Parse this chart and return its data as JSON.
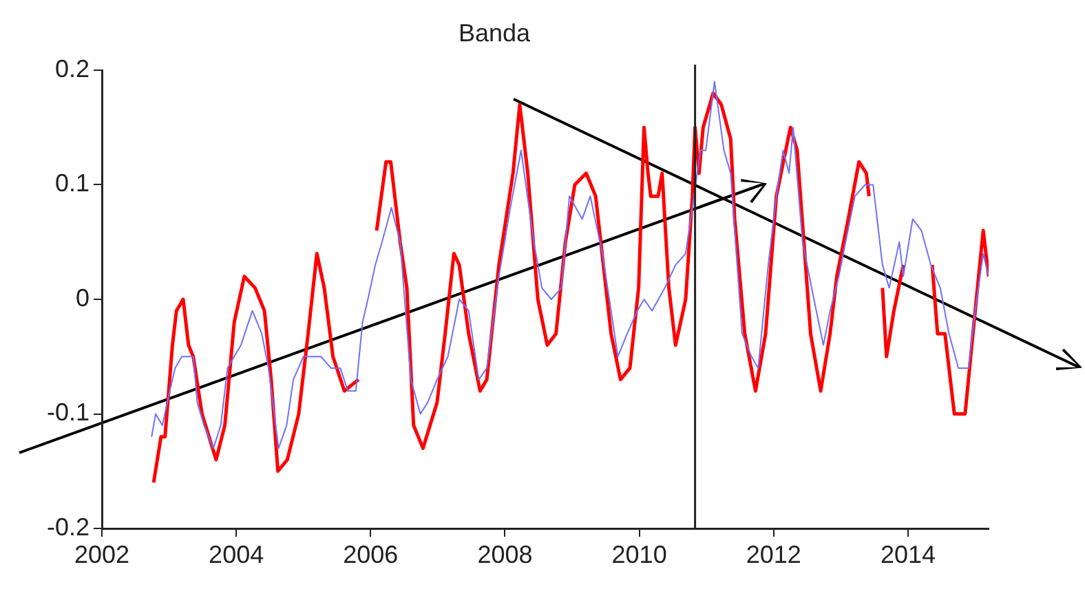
{
  "chart_data": {
    "type": "line",
    "title": "Banda",
    "xlim": [
      2002,
      2015.2
    ],
    "xticks": [
      2002,
      2004,
      2006,
      2008,
      2010,
      2012,
      2014
    ],
    "ylim": [
      -0.2,
      0.2
    ],
    "yticks": [
      -0.2,
      -0.1,
      0,
      0.1,
      0.2
    ],
    "grid": false,
    "legend": false,
    "marker": "none",
    "line_style": "solid",
    "ref_lines": [
      {
        "axis": "x",
        "value": 2010.83,
        "color": "#222222"
      }
    ],
    "series": [
      {
        "color": "#ff0000",
        "x": [
          2002.77,
          2002.88,
          2002.94,
          2003.05,
          2003.11,
          2003.21,
          2003.29,
          2003.36,
          2003.49,
          2003.7,
          2003.83,
          2003.97,
          2004.12,
          2004.28,
          2004.42,
          2004.52,
          2004.62,
          2004.76,
          2004.93,
          2005.07,
          2005.2,
          2005.31,
          2005.44,
          2005.61,
          2005.82,
          2005.95,
          2006.09,
          2006.23,
          2006.3,
          2006.44,
          2006.54,
          2006.64,
          2006.78,
          2006.99,
          2007.11,
          2007.24,
          2007.32,
          2007.46,
          2007.63,
          2007.73,
          2007.91,
          2008.12,
          2008.22,
          2008.34,
          2008.49,
          2008.63,
          2008.76,
          2008.9,
          2009.04,
          2009.21,
          2009.35,
          2009.58,
          2009.72,
          2009.86,
          2009.99,
          2010.07,
          2010.13,
          2010.17,
          2010.28,
          2010.34,
          2010.44,
          2010.54,
          2010.69,
          2010.79,
          2010.83,
          2010.89,
          2010.95,
          2011.1,
          2011.22,
          2011.36,
          2011.42,
          2011.57,
          2011.73,
          2011.88,
          2012.04,
          2012.25,
          2012.35,
          2012.45,
          2012.55,
          2012.7,
          2012.84,
          2012.94,
          2013.11,
          2013.27,
          2013.38,
          2013.42,
          2013.52,
          2013.62,
          2013.68,
          2013.79,
          2013.93,
          2014.15,
          2014.36,
          2014.44,
          2014.55,
          2014.69,
          2014.85,
          2015.0,
          2015.12,
          2015.2
        ],
        "values": [
          -0.16,
          -0.12,
          -0.12,
          -0.04,
          -0.01,
          0.0,
          -0.04,
          -0.05,
          -0.1,
          -0.14,
          -0.11,
          -0.02,
          0.02,
          0.01,
          -0.01,
          -0.07,
          -0.15,
          -0.14,
          -0.1,
          -0.03,
          0.04,
          0.01,
          -0.05,
          -0.08,
          -0.07,
          null,
          0.06,
          0.12,
          0.12,
          0.05,
          0.01,
          -0.11,
          -0.13,
          -0.09,
          -0.03,
          0.04,
          0.03,
          -0.03,
          -0.08,
          -0.07,
          0.03,
          0.11,
          0.17,
          0.11,
          0.0,
          -0.04,
          -0.03,
          0.05,
          0.1,
          0.11,
          0.09,
          -0.03,
          -0.07,
          -0.06,
          0.01,
          0.15,
          0.11,
          0.09,
          0.09,
          0.11,
          0.01,
          -0.04,
          0.0,
          0.09,
          0.15,
          0.11,
          0.15,
          0.18,
          0.17,
          0.14,
          0.07,
          -0.03,
          -0.08,
          -0.03,
          0.09,
          0.15,
          0.13,
          0.05,
          -0.03,
          -0.08,
          -0.03,
          0.02,
          0.07,
          0.12,
          0.11,
          0.09,
          null,
          0.01,
          -0.05,
          -0.01,
          0.03,
          null,
          0.03,
          -0.03,
          -0.03,
          -0.1,
          -0.1,
          -0.01,
          0.06,
          0.02
        ]
      },
      {
        "color": "#7070ff",
        "x": [
          2002.74,
          2002.8,
          2002.9,
          2003.01,
          2003.09,
          2003.19,
          2003.36,
          2003.42,
          2003.52,
          2003.66,
          2003.77,
          2003.87,
          2003.97,
          2004.07,
          2004.24,
          2004.38,
          2004.48,
          2004.63,
          2004.75,
          2004.85,
          2005.0,
          2005.14,
          2005.26,
          2005.41,
          2005.55,
          2005.66,
          2005.78,
          2005.88,
          2005.96,
          2006.07,
          2006.17,
          2006.31,
          2006.44,
          2006.6,
          2006.74,
          2006.85,
          2006.99,
          2007.15,
          2007.32,
          2007.46,
          2007.61,
          2007.73,
          2007.91,
          2008.08,
          2008.24,
          2008.43,
          2008.55,
          2008.69,
          2008.84,
          2008.96,
          2009.15,
          2009.27,
          2009.45,
          2009.58,
          2009.68,
          2009.82,
          2009.97,
          2010.07,
          2010.19,
          2010.38,
          2010.54,
          2010.69,
          2010.79,
          2010.91,
          2010.99,
          2011.12,
          2011.26,
          2011.36,
          2011.53,
          2011.67,
          2011.77,
          2011.92,
          2012.04,
          2012.14,
          2012.23,
          2012.29,
          2012.43,
          2012.6,
          2012.74,
          2012.84,
          2012.97,
          2013.07,
          2013.21,
          2013.36,
          2013.48,
          2013.62,
          2013.72,
          2013.87,
          2013.93,
          2014.07,
          2014.2,
          2014.34,
          2014.48,
          2014.61,
          2014.75,
          2014.9,
          2015.0,
          2015.12,
          2015.2
        ],
        "values": [
          -0.12,
          -0.1,
          -0.11,
          -0.08,
          -0.06,
          -0.05,
          -0.05,
          -0.09,
          -0.11,
          -0.13,
          -0.11,
          -0.06,
          -0.05,
          -0.04,
          -0.01,
          -0.03,
          -0.06,
          -0.13,
          -0.11,
          -0.07,
          -0.05,
          -0.05,
          -0.05,
          -0.06,
          -0.06,
          -0.08,
          -0.08,
          -0.02,
          0.0,
          0.03,
          0.05,
          0.08,
          0.05,
          -0.07,
          -0.1,
          -0.09,
          -0.07,
          -0.05,
          0.0,
          -0.01,
          -0.07,
          -0.06,
          0.02,
          0.08,
          0.13,
          0.05,
          0.01,
          0.0,
          0.01,
          0.09,
          0.07,
          0.09,
          0.04,
          -0.01,
          -0.05,
          -0.03,
          -0.01,
          0.0,
          -0.01,
          0.01,
          0.03,
          0.04,
          0.08,
          0.13,
          0.13,
          0.19,
          0.13,
          0.11,
          -0.03,
          -0.05,
          -0.06,
          0.03,
          0.09,
          0.13,
          0.11,
          0.15,
          0.05,
          0.0,
          -0.04,
          -0.01,
          0.02,
          0.05,
          0.09,
          0.1,
          0.1,
          0.03,
          0.01,
          0.05,
          0.02,
          0.07,
          0.06,
          0.03,
          0.01,
          -0.03,
          -0.06,
          -0.06,
          -0.01,
          0.04,
          0.02
        ]
      }
    ]
  }
}
